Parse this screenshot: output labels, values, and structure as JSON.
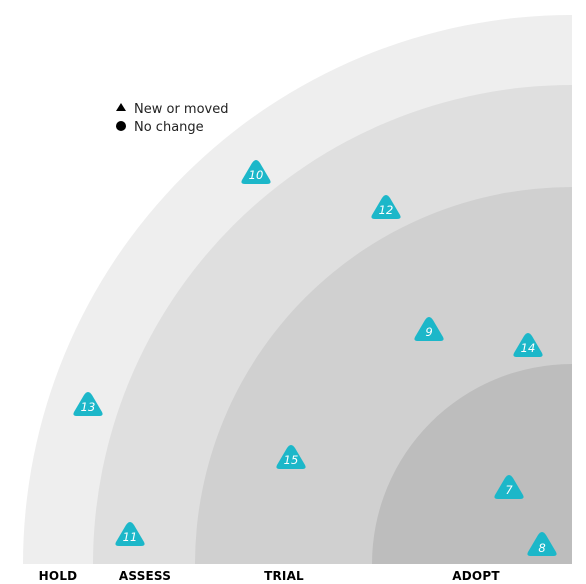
{
  "colors": {
    "ring_hold": "#eeeeee",
    "ring_assess": "#dfdfdf",
    "ring_trial": "#d0d0d0",
    "ring_adopt": "#bdbdbd",
    "blip": "#1cb7c9",
    "label": "#000000"
  },
  "legend": {
    "new_or_moved": "New or moved",
    "no_change": "No change",
    "new_or_moved_icon": "triangle-icon",
    "no_change_icon": "circle-icon"
  },
  "rings": [
    "HOLD",
    "ASSESS",
    "TRIAL",
    "ADOPT"
  ],
  "blips": [
    {
      "id": "7",
      "ring": "ADOPT",
      "shape": "triangle"
    },
    {
      "id": "8",
      "ring": "ADOPT",
      "shape": "triangle"
    },
    {
      "id": "9",
      "ring": "TRIAL",
      "shape": "triangle"
    },
    {
      "id": "10",
      "ring": "HOLD",
      "shape": "triangle"
    },
    {
      "id": "11",
      "ring": "ASSESS",
      "shape": "triangle"
    },
    {
      "id": "12",
      "ring": "ASSESS",
      "shape": "triangle"
    },
    {
      "id": "13",
      "ring": "HOLD",
      "shape": "triangle"
    },
    {
      "id": "14",
      "ring": "TRIAL",
      "shape": "triangle"
    },
    {
      "id": "15",
      "ring": "TRIAL",
      "shape": "triangle"
    }
  ]
}
